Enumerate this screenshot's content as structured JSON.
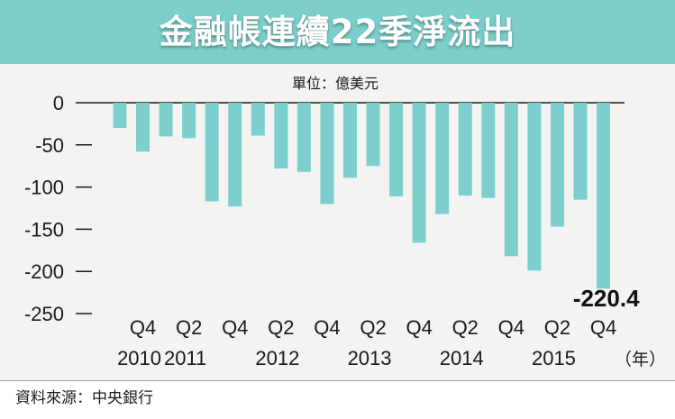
{
  "chart_data": {
    "type": "bar",
    "title": "金融帳連續22季淨流出",
    "unit_label": "單位：億美元",
    "source": "資料來源：中央銀行",
    "x_unit": "（年）",
    "ylim": [
      -250,
      0
    ],
    "y_ticks": [
      0,
      -50,
      -100,
      -150,
      -200,
      -250
    ],
    "bar_color": "#7ccfcc",
    "values": [
      -30,
      -58,
      -40,
      -42,
      -117,
      -123,
      -39,
      -78,
      -82,
      -120,
      -89,
      -75,
      -111,
      -166,
      -132,
      -110,
      -113,
      -182,
      -199,
      -147,
      -115,
      -220.4
    ],
    "x_labels": [
      {
        "index": 1,
        "quarter": "Q4",
        "year": "2010"
      },
      {
        "index": 3,
        "quarter": "Q2",
        "year": "2011"
      },
      {
        "index": 5,
        "quarter": "Q4",
        "year": ""
      },
      {
        "index": 7,
        "quarter": "Q2",
        "year": "2012"
      },
      {
        "index": 9,
        "quarter": "Q4",
        "year": ""
      },
      {
        "index": 11,
        "quarter": "Q2",
        "year": "2013"
      },
      {
        "index": 13,
        "quarter": "Q4",
        "year": ""
      },
      {
        "index": 15,
        "quarter": "Q2",
        "year": "2014"
      },
      {
        "index": 17,
        "quarter": "Q4",
        "year": ""
      },
      {
        "index": 19,
        "quarter": "Q2",
        "year": "2015"
      },
      {
        "index": 21,
        "quarter": "Q4",
        "year": ""
      }
    ],
    "annotation": {
      "index": 21,
      "text": "-220.4"
    }
  }
}
